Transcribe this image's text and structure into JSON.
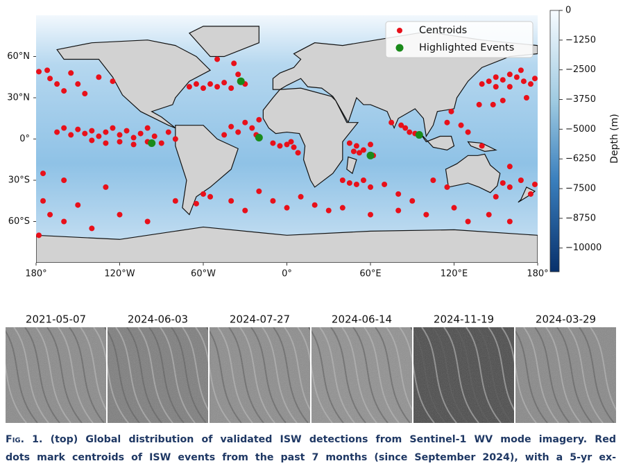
{
  "chart_data": {
    "type": "scatter",
    "legend": "upper right",
    "xlim": [
      -180,
      180
    ],
    "ylim": [
      -90,
      90
    ],
    "xticks": [
      {
        "value": -180,
        "label": "180°"
      },
      {
        "value": -120,
        "label": "120°W"
      },
      {
        "value": -60,
        "label": "60°W"
      },
      {
        "value": 0,
        "label": "0°"
      },
      {
        "value": 60,
        "label": "60°E"
      },
      {
        "value": 120,
        "label": "120°E"
      },
      {
        "value": 180,
        "label": "180°"
      }
    ],
    "yticks": [
      {
        "value": 60,
        "label": "60°N"
      },
      {
        "value": 30,
        "label": "30°N"
      },
      {
        "value": 0,
        "label": "0°"
      },
      {
        "value": -30,
        "label": "30°S"
      },
      {
        "value": -60,
        "label": "60°S"
      }
    ],
    "series": [
      {
        "name": "Centroids",
        "color": "#e8101a",
        "x": [
          140,
          145,
          150,
          155,
          160,
          165,
          170,
          175,
          160,
          150,
          168,
          178,
          172,
          155,
          148,
          138,
          -178,
          -172,
          -170,
          -165,
          -160,
          -155,
          -150,
          -145,
          -135,
          -125,
          -165,
          -160,
          -155,
          -150,
          -145,
          -140,
          -135,
          -130,
          -125,
          -120,
          -115,
          -110,
          -105,
          -100,
          -95,
          -90,
          -85,
          -80,
          -110,
          -100,
          -120,
          -130,
          -140,
          -70,
          -65,
          -60,
          -55,
          -50,
          -45,
          -40,
          -30,
          -35,
          -40,
          -35,
          -30,
          -25,
          -20,
          -22,
          -45,
          -38,
          -50,
          -10,
          -5,
          0,
          5,
          8,
          3,
          45,
          50,
          55,
          60,
          52,
          48,
          62,
          40,
          45,
          50,
          55,
          60,
          70,
          80,
          90,
          85,
          88,
          92,
          82,
          75,
          118,
          115,
          125,
          130,
          140,
          160,
          155,
          160,
          168,
          175,
          178,
          150,
          115,
          105,
          -170,
          -160,
          -150,
          -140,
          -120,
          -100,
          -80,
          -60,
          -65,
          -55,
          -40,
          -30,
          -20,
          -10,
          0,
          10,
          20,
          30,
          40,
          60,
          80,
          100,
          120,
          130,
          145,
          160,
          -178,
          -175,
          -175,
          -160,
          -130
        ],
        "values": [
          40,
          42,
          45,
          43,
          47,
          45,
          42,
          40,
          38,
          38,
          50,
          44,
          30,
          28,
          25,
          25,
          49,
          50,
          44,
          40,
          35,
          48,
          40,
          33,
          45,
          42,
          5,
          8,
          3,
          7,
          4,
          6,
          2,
          5,
          8,
          3,
          6,
          1,
          4,
          -2,
          2,
          -3,
          5,
          0,
          -4,
          8,
          -2,
          -3,
          -1,
          38,
          40,
          37,
          40,
          38,
          41,
          37,
          40,
          47,
          9,
          5,
          12,
          8,
          14,
          3,
          3,
          55,
          58,
          -3,
          -5,
          -4,
          -6,
          -10,
          -2,
          -3,
          -5,
          -8,
          -4,
          -10,
          -9,
          -12,
          -30,
          -32,
          -33,
          -30,
          -35,
          -33,
          -40,
          -45,
          8,
          5,
          4,
          10,
          12,
          20,
          12,
          10,
          5,
          -5,
          -20,
          -32,
          -35,
          -30,
          -40,
          -33,
          -42,
          -35,
          -30,
          -55,
          -60,
          -48,
          -65,
          -55,
          -60,
          -45,
          -40,
          -47,
          -42,
          -45,
          -52,
          -38,
          -45,
          -50,
          -42,
          -48,
          -52,
          -50,
          -55,
          -52,
          -55,
          -50,
          -60,
          -55,
          -60,
          -70,
          -45,
          -25,
          -30,
          -35
        ]
      },
      {
        "name": "Highlighted Events",
        "color": "#1a8a1a",
        "x": [
          -97,
          -33,
          -20,
          60,
          95
        ],
        "values": [
          -3,
          42,
          1,
          -12,
          3
        ]
      }
    ],
    "colorbar": {
      "label": "Depth (m)",
      "lim": [
        -11000,
        0
      ],
      "ticks": [
        0,
        {
          "value": -1250,
          "label": "−1250"
        },
        {
          "value": -2500,
          "label": "−2500"
        },
        {
          "value": -3750,
          "label": "−3750"
        },
        {
          "value": -5000,
          "label": "−5000"
        },
        {
          "value": -6250,
          "label": "−6250"
        },
        {
          "value": -7500,
          "label": "−7500"
        },
        {
          "value": -8750,
          "label": "−8750"
        },
        {
          "value": -10000,
          "label": "−10000"
        }
      ]
    }
  },
  "panels": [
    "2021-05-07",
    "2024-06-03",
    "2024-07-27",
    "2024-06-14",
    "2024-11-19",
    "2024-03-29"
  ],
  "caption": {
    "label": "Fig. 1.",
    "lines": [
      "(top) Global distribution of validated ISW detections from Sentinel-1 WV mode imagery. Red",
      "dots mark centroids of ISW events from the past 7 months (since September 2024), with a 5-yr ex-"
    ]
  }
}
